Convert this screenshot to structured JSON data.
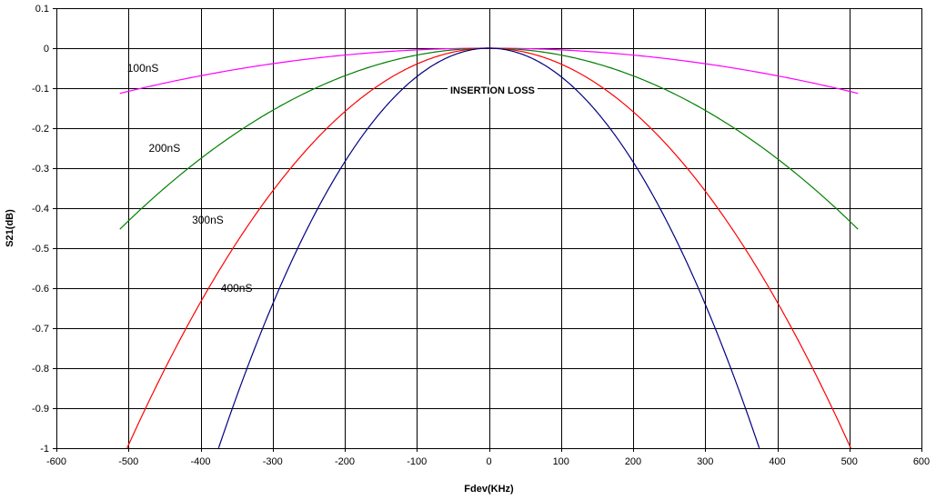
{
  "chart_data": {
    "type": "line",
    "title": "",
    "xlabel": "Fdev(KHz)",
    "ylabel": "S21(dB)",
    "xlim": [
      -600,
      600
    ],
    "ylim": [
      -1,
      0.1
    ],
    "x_ticks": [
      "-600",
      "-500",
      "-400",
      "-300",
      "-200",
      "-100",
      "0",
      "100",
      "200",
      "300",
      "400",
      "500",
      "600"
    ],
    "y_ticks": [
      "0.1",
      "0",
      "-0.1",
      "-0.2",
      "-0.3",
      "-0.4",
      "-0.5",
      "-0.6",
      "-0.7",
      "-0.8",
      "-0.9",
      "-1"
    ],
    "grid": true,
    "legend": "none",
    "annotations": [
      {
        "text": "100nS",
        "x": -480,
        "y": -0.05
      },
      {
        "text": "200nS",
        "x": -450,
        "y": -0.25
      },
      {
        "text": "300nS",
        "x": -390,
        "y": -0.43
      },
      {
        "text": "400nS",
        "x": -350,
        "y": -0.6
      },
      {
        "text": "INSERTION LOSS",
        "x": 5,
        "y": -0.105,
        "bold": true
      }
    ],
    "series": [
      {
        "name": "100nS",
        "color": "#ff00ff",
        "x": [
          -512,
          -400,
          -300,
          -200,
          -100,
          0,
          100,
          200,
          300,
          400,
          512
        ],
        "y": [
          -0.113,
          -0.069,
          -0.039,
          -0.017,
          -0.004,
          0,
          -0.004,
          -0.017,
          -0.039,
          -0.069,
          -0.113
        ]
      },
      {
        "name": "200nS",
        "color": "#008000",
        "x": [
          -512,
          -400,
          -300,
          -200,
          -100,
          0,
          100,
          200,
          300,
          400,
          512
        ],
        "y": [
          -0.453,
          -0.276,
          -0.155,
          -0.069,
          -0.017,
          0,
          -0.017,
          -0.069,
          -0.155,
          -0.276,
          -0.453
        ]
      },
      {
        "name": "300nS",
        "color": "#ff0000",
        "x": [
          -502,
          -400,
          -300,
          -200,
          -100,
          0,
          100,
          200,
          300,
          400,
          502
        ],
        "y": [
          -1,
          -0.635,
          -0.357,
          -0.159,
          -0.04,
          0,
          -0.04,
          -0.159,
          -0.357,
          -0.635,
          -1
        ]
      },
      {
        "name": "400nS",
        "color": "#000080",
        "x": [
          -375,
          -350,
          -300,
          -250,
          -200,
          -150,
          -100,
          -50,
          0,
          50,
          100,
          150,
          200,
          250,
          300,
          350,
          375
        ],
        "y": [
          -1,
          -0.87,
          -0.64,
          -0.445,
          -0.284,
          -0.16,
          -0.071,
          -0.018,
          0,
          -0.018,
          -0.071,
          -0.16,
          -0.284,
          -0.445,
          -0.64,
          -0.87,
          -1
        ]
      }
    ]
  }
}
